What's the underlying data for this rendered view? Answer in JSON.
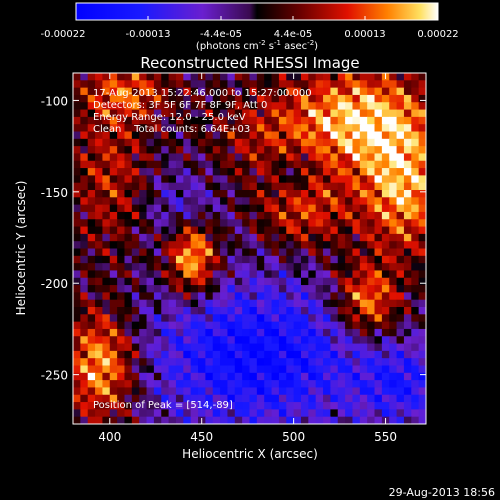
{
  "chart_data": {
    "type": "heatmap",
    "title": "Reconstructed RHESSI Image",
    "info_lines": [
      "17-Aug-2013 15:22:46.000 to 15:27:00.000",
      "Detectors: 3F 5F 6F 7F 8F 9F, Att 0",
      "Energy Range: 12.0 - 25.0 keV",
      "Clean    Total counts: 6.64E+03"
    ],
    "peak_label": "Position of Peak = [514,-89]",
    "xlabel": "Heliocentric X (arcsec)",
    "ylabel": "Heliocentric Y (arcsec)",
    "xlim": [
      380,
      572
    ],
    "ylim": [
      -277,
      -85
    ],
    "x_ticks": [
      400,
      450,
      500,
      550
    ],
    "y_ticks": [
      -100,
      -150,
      -200,
      -250
    ],
    "colorbar": {
      "ticks": [
        "-0.00022",
        "-0.00013",
        "-4.4e-05",
        "4.4e-05",
        "0.00013",
        "0.00022"
      ],
      "unit_prefix": "(photons cm",
      "unit_exp1": "-2",
      "unit_mid": " s",
      "unit_exp2": "-1",
      "unit_suffix": " asec",
      "unit_exp3": "-2",
      "unit_close": ")",
      "vmin": -0.00022,
      "vmax": 0.00022
    },
    "grid": false
  },
  "footer": {
    "timestamp": "29-Aug-2013 18:56"
  }
}
